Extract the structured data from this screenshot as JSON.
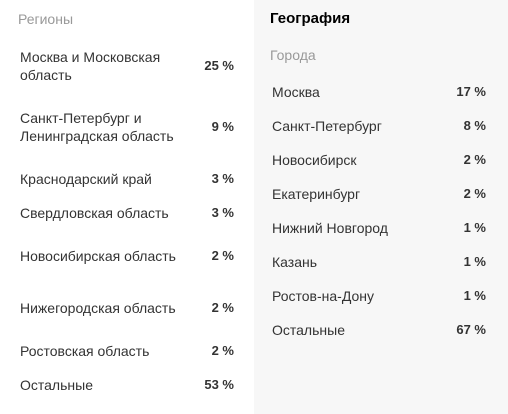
{
  "regions": {
    "label": "Регионы",
    "items": [
      {
        "name": "Москва и Московская область",
        "pct": "25 %"
      },
      {
        "name": "Санкт-Петербург и Ленинградская область",
        "pct": "9 %"
      },
      {
        "name": "Краснодарский край",
        "pct": "3 %"
      },
      {
        "name": "Свердловская область",
        "pct": "3 %"
      },
      {
        "name": "Новосибирская область",
        "pct": "2 %"
      },
      {
        "name": "Нижегородская область",
        "pct": "2 %"
      },
      {
        "name": "Ростовская область",
        "pct": "2 %"
      },
      {
        "name": "Остальные",
        "pct": "53 %"
      }
    ]
  },
  "geography": {
    "title": "География",
    "cities_label": "Города",
    "items": [
      {
        "name": "Москва",
        "pct": "17 %"
      },
      {
        "name": "Санкт-Петербург",
        "pct": "8 %"
      },
      {
        "name": "Новосибирск",
        "pct": "2 %"
      },
      {
        "name": "Екатеринбург",
        "pct": "2 %"
      },
      {
        "name": "Нижний Новгород",
        "pct": "1 %"
      },
      {
        "name": "Казань",
        "pct": "1 %"
      },
      {
        "name": "Ростов-на-Дону",
        "pct": "1 %"
      },
      {
        "name": "Остальные",
        "pct": "67 %"
      }
    ]
  }
}
